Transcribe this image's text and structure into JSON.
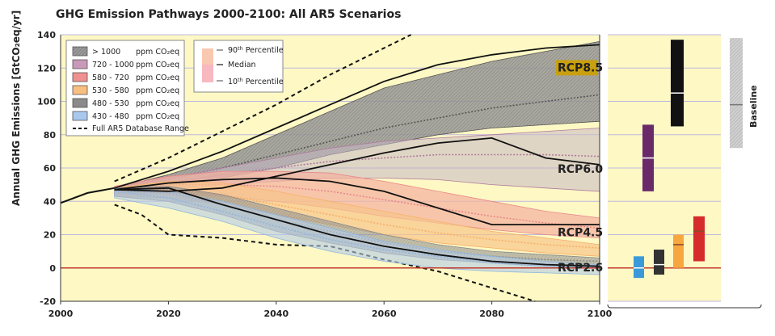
{
  "chart_data": {
    "type": "area",
    "title": "GHG Emission Pathways 2000-2100: All AR5 Scenarios",
    "ylabel": "Annual GHG Emissions [GtCO₂eq/yr]",
    "xlabel": "",
    "xlim": [
      2000,
      2100
    ],
    "ylim": [
      -20,
      140
    ],
    "x_ticks": [
      "2000",
      "2020",
      "2040",
      "2060",
      "2080",
      "2100"
    ],
    "y_ticks": [
      "-20",
      "0",
      "20",
      "40",
      "60",
      "80",
      "100",
      "120",
      "140"
    ],
    "legend_categories": [
      {
        "label": "> 1000",
        "unit": "ppm CO₂eq",
        "color": "#555555"
      },
      {
        "label": "720 - 1000",
        "unit": "ppm CO₂eq",
        "color": "#b07a9e"
      },
      {
        "label": "580 - 720",
        "unit": "ppm CO₂eq",
        "color": "#e8868a"
      },
      {
        "label": "530 - 580",
        "unit": "ppm CO₂eq",
        "color": "#f7b06a"
      },
      {
        "label": "480 - 530",
        "unit": "ppm CO₂eq",
        "color": "#8a8a8a"
      },
      {
        "label": "430 - 480",
        "unit": "ppm CO₂eq",
        "color": "#8fb5e0"
      }
    ],
    "legend_range": "Full AR5 Database Range",
    "legend_percentiles": {
      "p90": "90th Percentile",
      "median": "Median",
      "p10": "10th Percentile"
    },
    "series": [
      {
        "category": ">1000",
        "x": [
          2010,
          2020,
          2030,
          2040,
          2050,
          2060,
          2070,
          2080,
          2090,
          2100
        ],
        "p90": [
          48,
          56,
          66,
          80,
          94,
          108,
          116,
          124,
          130,
          136
        ],
        "median": [
          47,
          53,
          60,
          68,
          76,
          84,
          90,
          96,
          100,
          104
        ],
        "p10": [
          46,
          50,
          54,
          60,
          68,
          74,
          80,
          84,
          86,
          88
        ],
        "color": "#555555"
      },
      {
        "category": "720-1000",
        "x": [
          2010,
          2020,
          2030,
          2040,
          2050,
          2060,
          2070,
          2080,
          2090,
          2100
        ],
        "p90": [
          48,
          54,
          60,
          66,
          72,
          76,
          78,
          80,
          82,
          84
        ],
        "median": [
          47,
          51,
          56,
          60,
          64,
          66,
          68,
          68,
          68,
          67
        ],
        "p10": [
          45,
          47,
          50,
          52,
          54,
          54,
          53,
          50,
          48,
          46
        ],
        "color": "#b07a9e"
      },
      {
        "category": "580-720",
        "x": [
          2010,
          2020,
          2030,
          2040,
          2050,
          2060,
          2070,
          2080,
          2090,
          2100
        ],
        "p90": [
          49,
          55,
          58,
          58,
          57,
          52,
          46,
          40,
          34,
          30
        ],
        "median": [
          47,
          50,
          50,
          49,
          46,
          41,
          36,
          31,
          27,
          24
        ],
        "p10": [
          44,
          45,
          43,
          40,
          36,
          31,
          27,
          23,
          20,
          18
        ],
        "color": "#e8868a"
      },
      {
        "category": "530-580",
        "x": [
          2010,
          2020,
          2030,
          2040,
          2050,
          2060,
          2070,
          2080,
          2090,
          2100
        ],
        "p90": [
          48,
          52,
          51,
          46,
          40,
          34,
          28,
          22,
          18,
          14
        ],
        "median": [
          46,
          47,
          44,
          38,
          32,
          26,
          21,
          17,
          14,
          12
        ],
        "p10": [
          43,
          42,
          38,
          32,
          26,
          20,
          15,
          12,
          9,
          7
        ],
        "color": "#f7b06a"
      },
      {
        "category": "480-530",
        "x": [
          2010,
          2020,
          2030,
          2040,
          2050,
          2060,
          2070,
          2080,
          2090,
          2100
        ],
        "p90": [
          48,
          49,
          44,
          36,
          28,
          20,
          14,
          10,
          8,
          6
        ],
        "median": [
          46,
          45,
          38,
          29,
          22,
          15,
          10,
          7,
          5,
          4
        ],
        "p10": [
          43,
          40,
          32,
          22,
          15,
          9,
          5,
          3,
          1,
          0
        ],
        "color": "#8a8a8a"
      },
      {
        "category": "430-480",
        "x": [
          2010,
          2020,
          2030,
          2040,
          2050,
          2060,
          2070,
          2080,
          2090,
          2100
        ],
        "p90": [
          48,
          46,
          40,
          32,
          24,
          16,
          11,
          7,
          4,
          2
        ],
        "median": [
          46,
          42,
          34,
          25,
          17,
          11,
          7,
          3,
          1,
          0
        ],
        "p10": [
          42,
          36,
          28,
          18,
          10,
          4,
          0,
          -2,
          -3,
          -4
        ],
        "color": "#8fb5e0"
      }
    ],
    "historical": {
      "x": [
        2000,
        2005,
        2010
      ],
      "y": [
        39,
        45,
        48
      ]
    },
    "rcp_lines": [
      {
        "name": "RCP8.5",
        "x": [
          2010,
          2020,
          2030,
          2040,
          2050,
          2060,
          2070,
          2080,
          2090,
          2100
        ],
        "y": [
          48,
          58,
          70,
          84,
          98,
          112,
          122,
          128,
          132,
          134
        ]
      },
      {
        "name": "RCP6.0",
        "x": [
          2010,
          2020,
          2030,
          2040,
          2050,
          2060,
          2070,
          2080,
          2090,
          2100
        ],
        "y": [
          47,
          46,
          48,
          55,
          62,
          69,
          75,
          78,
          66,
          62
        ]
      },
      {
        "name": "RCP4.5",
        "x": [
          2010,
          2020,
          2030,
          2040,
          2050,
          2060,
          2070,
          2080,
          2090,
          2100
        ],
        "y": [
          47,
          51,
          53,
          54,
          52,
          46,
          36,
          26,
          26,
          26
        ]
      },
      {
        "name": "RCP2.6",
        "x": [
          2010,
          2020,
          2030,
          2040,
          2050,
          2060,
          2070,
          2080,
          2090,
          2100
        ],
        "y": [
          47,
          48,
          38,
          29,
          20,
          13,
          8,
          4,
          2,
          1
        ]
      }
    ],
    "database_range": {
      "upper": {
        "x": [
          2010,
          2020,
          2030,
          2040,
          2050,
          2060,
          2065
        ],
        "y": [
          52,
          66,
          82,
          98,
          116,
          132,
          140
        ]
      },
      "lower": {
        "x": [
          2010,
          2015,
          2020,
          2030,
          2040,
          2050,
          2060,
          2070,
          2080,
          2088
        ],
        "y": [
          38,
          32,
          20,
          18,
          14,
          13,
          5,
          -2,
          -12,
          -20
        ]
      }
    },
    "rcp_labels": [
      {
        "name": "RCP8.5",
        "x": 2090,
        "y": 118
      },
      {
        "name": "RCP6.0",
        "x": 2090,
        "y": 57
      },
      {
        "name": "RCP4.5",
        "x": 2090,
        "y": 19
      },
      {
        "name": "RCP2.6",
        "x": 2090,
        "y": -2
      }
    ],
    "bars_2100": [
      {
        "category": "430-480",
        "low": -6,
        "high": 7,
        "median": 0,
        "color": "#3a9ad9"
      },
      {
        "category": "480-530",
        "low": -4,
        "high": 11,
        "median": 2,
        "color": "#333333"
      },
      {
        "category": "530-580",
        "low": 0,
        "high": 20,
        "median": 14,
        "color": "#f7a640"
      },
      {
        "category": "580-720",
        "low": 4,
        "high": 31,
        "median": 22,
        "color": "#d62b2b"
      },
      {
        "category": "720-1000",
        "low": 46,
        "high": 86,
        "median": 66,
        "color": "#6a2a6a"
      },
      {
        "category": ">1000",
        "low": 85,
        "high": 137,
        "median": 105,
        "color": "#111111"
      }
    ],
    "baseline_bar": {
      "label": "Baseline",
      "low": 72,
      "high": 138,
      "median": 98,
      "color": "#bbbbbb"
    },
    "zero_line_color": "#c0392b",
    "background_color": "#fdf8c4",
    "grid": true,
    "legend_placement": "top-left"
  }
}
